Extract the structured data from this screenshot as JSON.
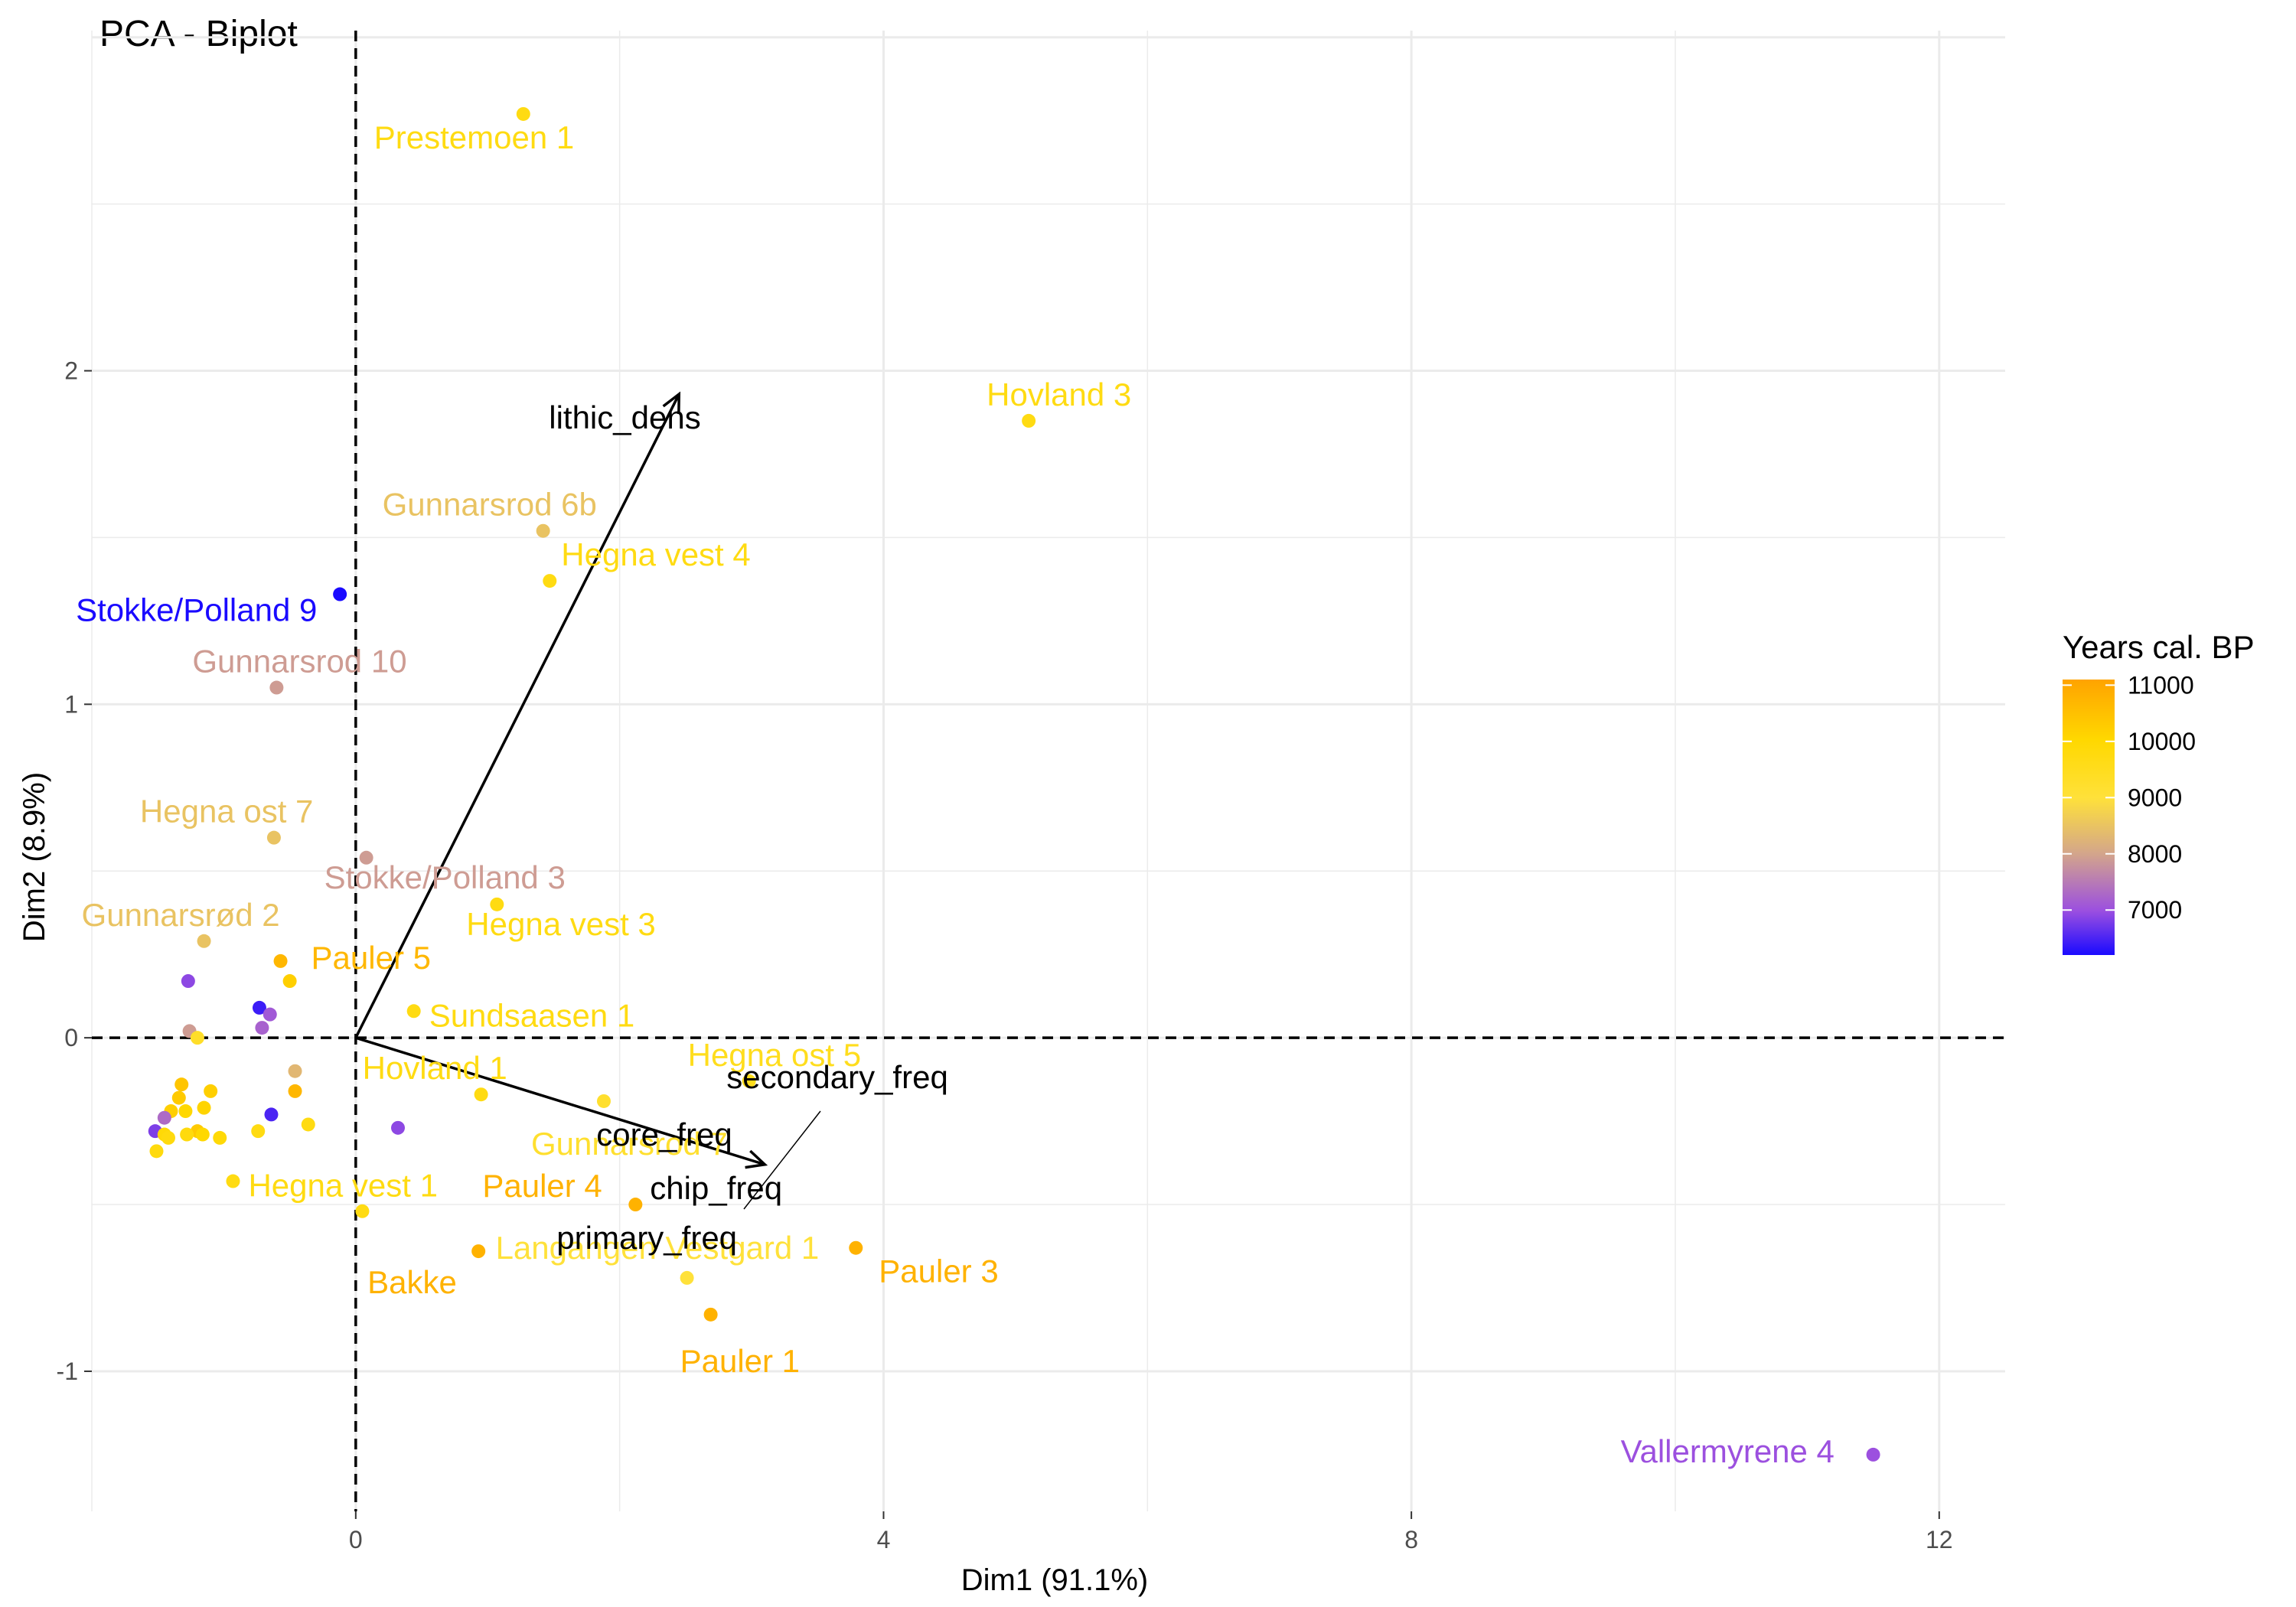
{
  "chart_data": {
    "type": "scatter",
    "title": "PCA - Biplot",
    "xlabel": "Dim1 (91.1%)",
    "ylabel": "Dim2 (8.9%)",
    "xlim": [
      -2.0,
      12.5
    ],
    "ylim": [
      -1.42,
      3.02
    ],
    "x_ticks": [
      0,
      4,
      8,
      12
    ],
    "y_ticks": [
      -1,
      0,
      1,
      2
    ],
    "grid": true,
    "reference_lines": {
      "x": 0,
      "y": 0,
      "style": "dashed"
    },
    "legend": {
      "title": "Years cal. BP",
      "position": "right",
      "range": [
        6200,
        11100
      ],
      "ticks": [
        7000,
        8000,
        9000,
        10000,
        11000
      ],
      "colors": [
        "#1a0aff",
        "#9b4fe0",
        "#d4a68a",
        "#ffe13a",
        "#ffd800",
        "#ffa300"
      ]
    },
    "points": [
      {
        "label": "Prestemoen 1",
        "x": 1.27,
        "y": 2.77,
        "year": 9700
      },
      {
        "label": "Hovland 3",
        "x": 5.1,
        "y": 1.85,
        "year": 9700
      },
      {
        "label": "Gunnarsrod 6b",
        "x": 1.42,
        "y": 1.52,
        "year": 8500
      },
      {
        "label": "Hegna vest 4",
        "x": 1.47,
        "y": 1.37,
        "year": 9700
      },
      {
        "label": "Stokke/Polland 9",
        "x": -0.12,
        "y": 1.33,
        "year": 6200
      },
      {
        "label": "Gunnarsrod 10",
        "x": -0.6,
        "y": 1.05,
        "year": 7900
      },
      {
        "label": "Hegna ost 7",
        "x": -0.62,
        "y": 0.6,
        "year": 8500
      },
      {
        "label": "Stokke/Polland 3",
        "x": 0.08,
        "y": 0.54,
        "year": 7900
      },
      {
        "label": "Hegna vest 3",
        "x": 1.07,
        "y": 0.4,
        "year": 9700
      },
      {
        "label": "Gunnarsrød 2",
        "x": -1.15,
        "y": 0.29,
        "year": 8500
      },
      {
        "label": "Pauler 5",
        "x": -0.57,
        "y": 0.23,
        "year": 10700
      },
      {
        "label": "Sundsaasen 1",
        "x": 0.44,
        "y": 0.08,
        "year": 9700
      },
      {
        "label": "Hovland 1",
        "x": 0.95,
        "y": -0.17,
        "year": 9700
      },
      {
        "label": "Hegna ost 5",
        "x": 2.98,
        "y": -0.13,
        "year": 9500
      },
      {
        "label": "Gunnarsrod 7",
        "x": 1.88,
        "y": -0.19,
        "year": 9200
      },
      {
        "label": "Hegna vest 1",
        "x": -0.93,
        "y": -0.43,
        "year": 9700
      },
      {
        "label": "Pauler 4",
        "x": 2.12,
        "y": -0.5,
        "year": 10800
      },
      {
        "label": "Langangen Vestgard 1",
        "x": 2.51,
        "y": -0.72,
        "year": 9000
      },
      {
        "label": "Bakke",
        "x": 0.93,
        "y": -0.64,
        "year": 10800
      },
      {
        "label": "Pauler 3",
        "x": 3.79,
        "y": -0.63,
        "year": 10800
      },
      {
        "label": "Pauler 1",
        "x": 2.69,
        "y": -0.83,
        "year": 10800
      },
      {
        "label": "Vallermyrene 4",
        "x": 11.5,
        "y": -1.25,
        "year": 7000
      },
      {
        "label": "",
        "x": -0.5,
        "y": 0.17,
        "year": 10200
      },
      {
        "label": "",
        "x": -1.27,
        "y": 0.17,
        "year": 6900
      },
      {
        "label": "",
        "x": -0.73,
        "y": 0.09,
        "year": 6400
      },
      {
        "label": "",
        "x": -0.65,
        "y": 0.07,
        "year": 7100
      },
      {
        "label": "",
        "x": -0.71,
        "y": 0.03,
        "year": 7200
      },
      {
        "label": "",
        "x": -1.26,
        "y": 0.02,
        "year": 7900
      },
      {
        "label": "",
        "x": -1.2,
        "y": 0.0,
        "year": 9300
      },
      {
        "label": "",
        "x": -0.46,
        "y": -0.1,
        "year": 8300
      },
      {
        "label": "",
        "x": -0.46,
        "y": -0.16,
        "year": 10700
      },
      {
        "label": "",
        "x": -0.64,
        "y": -0.23,
        "year": 6500
      },
      {
        "label": "",
        "x": -0.36,
        "y": -0.26,
        "year": 9700
      },
      {
        "label": "",
        "x": 0.32,
        "y": -0.27,
        "year": 6900
      },
      {
        "label": "",
        "x": -0.74,
        "y": -0.28,
        "year": 9700
      },
      {
        "label": "",
        "x": -1.32,
        "y": -0.14,
        "year": 10400
      },
      {
        "label": "",
        "x": -1.1,
        "y": -0.16,
        "year": 10200
      },
      {
        "label": "",
        "x": -1.34,
        "y": -0.18,
        "year": 10300
      },
      {
        "label": "",
        "x": -1.15,
        "y": -0.21,
        "year": 10100
      },
      {
        "label": "",
        "x": -1.29,
        "y": -0.22,
        "year": 10000
      },
      {
        "label": "",
        "x": -1.4,
        "y": -0.22,
        "year": 10200
      },
      {
        "label": "",
        "x": -1.45,
        "y": -0.24,
        "year": 7300
      },
      {
        "label": "",
        "x": -1.52,
        "y": -0.28,
        "year": 6800
      },
      {
        "label": "",
        "x": -1.45,
        "y": -0.29,
        "year": 9900
      },
      {
        "label": "",
        "x": -1.2,
        "y": -0.28,
        "year": 10300
      },
      {
        "label": "",
        "x": -1.16,
        "y": -0.29,
        "year": 10000
      },
      {
        "label": "",
        "x": -1.28,
        "y": -0.29,
        "year": 9800
      },
      {
        "label": "",
        "x": -1.03,
        "y": -0.3,
        "year": 9900
      },
      {
        "label": "",
        "x": -1.42,
        "y": -0.3,
        "year": 9800
      },
      {
        "label": "",
        "x": -1.51,
        "y": -0.34,
        "year": 9800
      },
      {
        "label": "",
        "x": 0.05,
        "y": -0.52,
        "year": 9700
      }
    ],
    "variables": [
      {
        "name": "lithic_dens",
        "x": 2.45,
        "y": 1.93
      },
      {
        "name": "secondary_freq",
        "x": 3.1,
        "y": -0.38
      },
      {
        "name": "core_freq",
        "x": 3.1,
        "y": -0.38
      },
      {
        "name": "chip_freq",
        "x": 3.1,
        "y": -0.38
      },
      {
        "name": "primary_freq",
        "x": 3.1,
        "y": -0.38
      }
    ]
  }
}
